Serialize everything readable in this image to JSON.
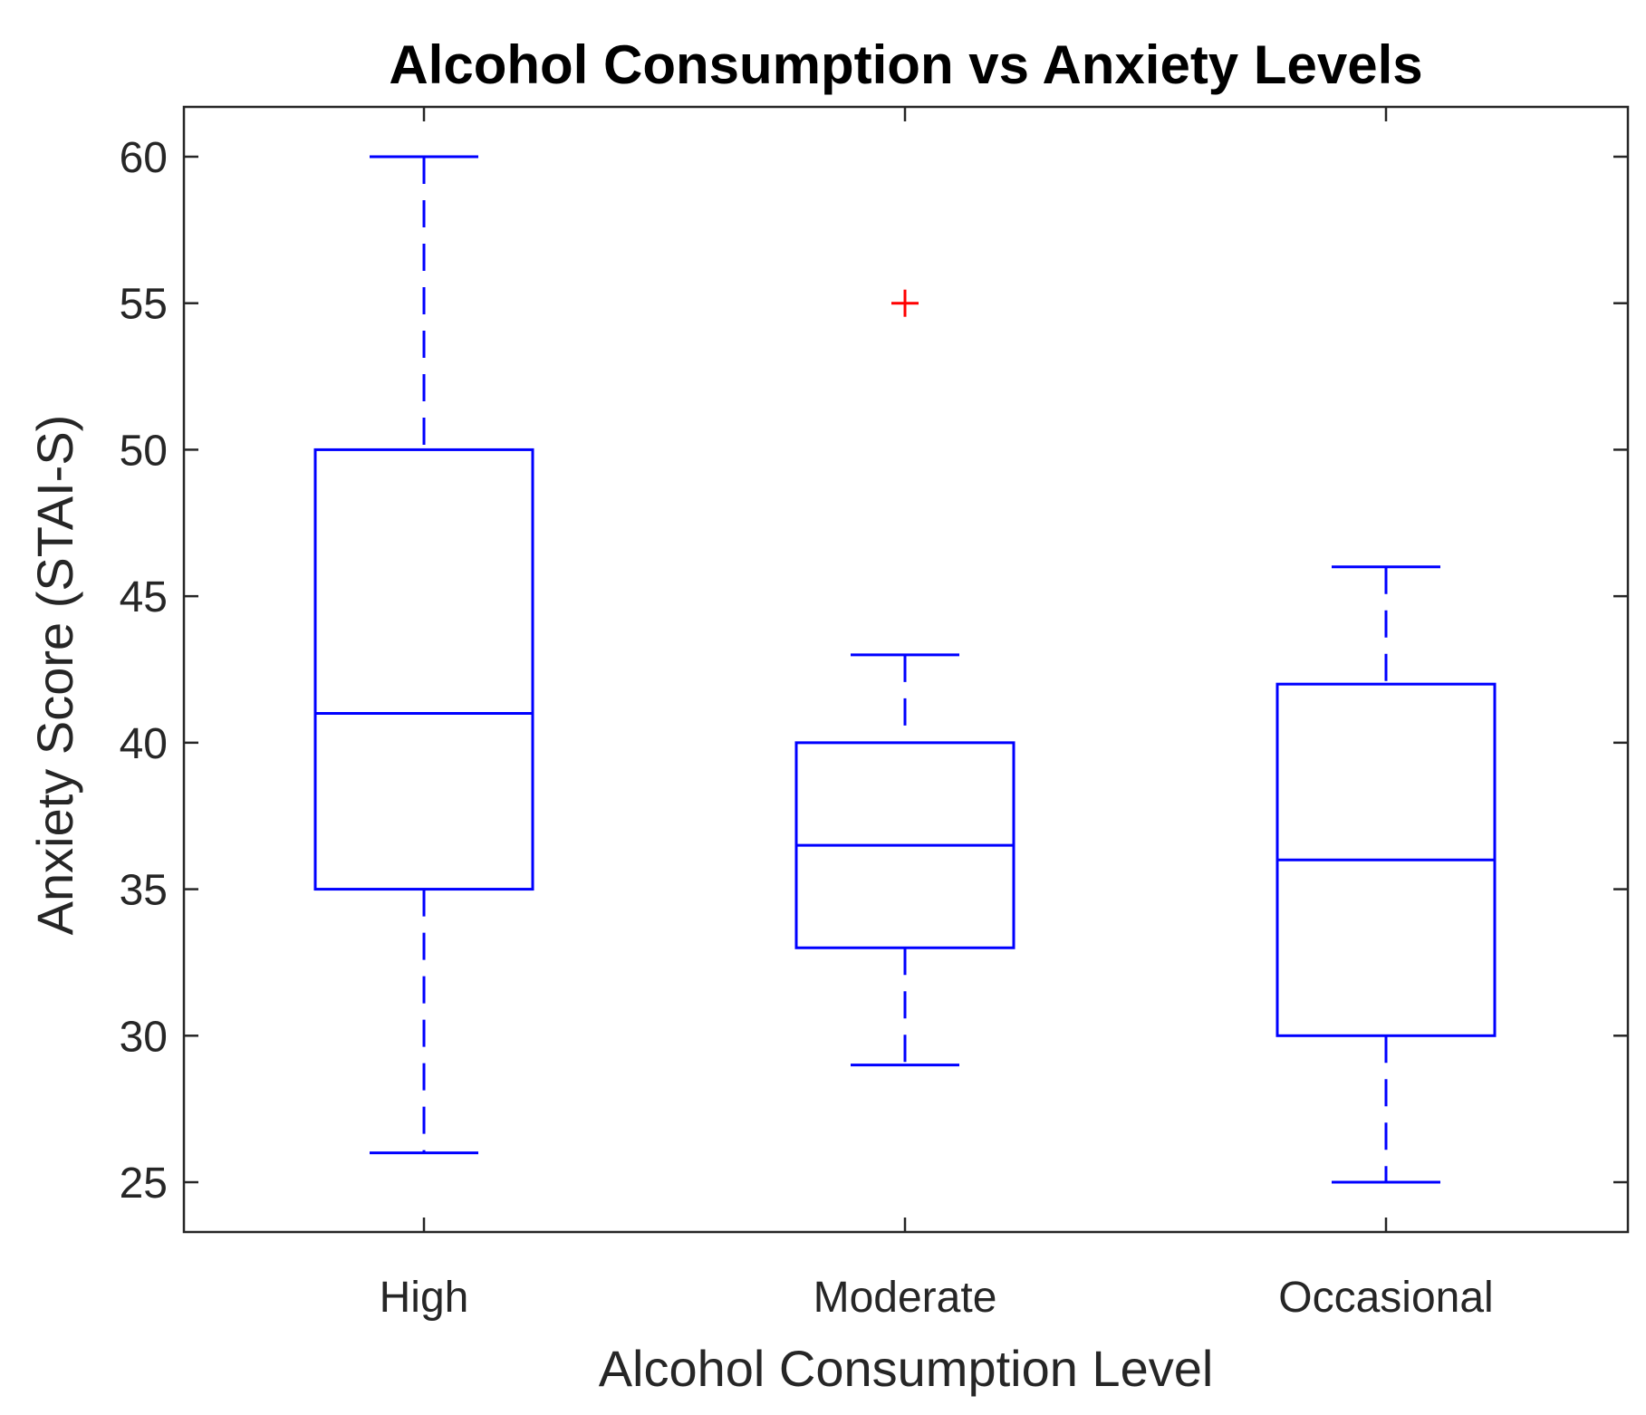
{
  "chart_data": {
    "type": "box",
    "title": "Alcohol Consumption vs Anxiety Levels",
    "xlabel": "Alcohol Consumption Level",
    "ylabel": "Anxiety Score (STAI-S)",
    "ylim": [
      23.3,
      61.7
    ],
    "yticks": [
      25,
      30,
      35,
      40,
      45,
      50,
      55,
      60
    ],
    "ytick_labels": [
      "25",
      "30",
      "35",
      "40",
      "45",
      "50",
      "55",
      "60"
    ],
    "grid": false,
    "categories": [
      "High",
      "Moderate",
      "Occasional"
    ],
    "boxes": [
      {
        "category": "High",
        "whisker_low": 26,
        "q1": 35,
        "median": 41,
        "q3": 50,
        "whisker_high": 60,
        "outliers": []
      },
      {
        "category": "Moderate",
        "whisker_low": 29,
        "q1": 33,
        "median": 36.5,
        "q3": 40,
        "whisker_high": 43,
        "outliers": [
          55
        ]
      },
      {
        "category": "Occasional",
        "whisker_low": 25,
        "q1": 30,
        "median": 36,
        "q3": 42,
        "whisker_high": 46,
        "outliers": []
      }
    ],
    "colors": {
      "box": "#0000FF",
      "outlier": "#FF0000",
      "axes": "#262626",
      "title": "#000000"
    }
  }
}
